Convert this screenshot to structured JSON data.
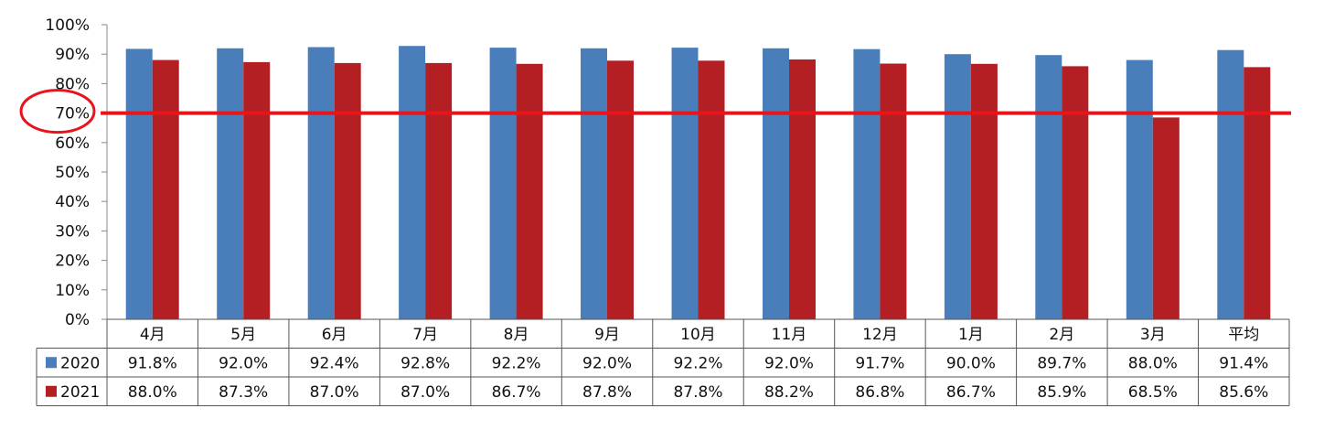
{
  "chart_data": {
    "type": "bar",
    "categories": [
      "4月",
      "5月",
      "6月",
      "7月",
      "8月",
      "9月",
      "10月",
      "11月",
      "12月",
      "1月",
      "2月",
      "3月",
      "平均"
    ],
    "series": [
      {
        "name": "2020",
        "color": "#4a7ebb",
        "values": [
          91.8,
          92.0,
          92.4,
          92.8,
          92.2,
          92.0,
          92.2,
          92.0,
          91.7,
          90.0,
          89.7,
          88.0,
          91.4
        ],
        "labels": [
          "91.8%",
          "92.0%",
          "92.4%",
          "92.8%",
          "92.2%",
          "92.0%",
          "92.2%",
          "92.0%",
          "91.7%",
          "90.0%",
          "89.7%",
          "88.0%",
          "91.4%"
        ]
      },
      {
        "name": "2021",
        "color": "#b41f24",
        "values": [
          88.0,
          87.3,
          87.0,
          87.0,
          86.7,
          87.8,
          87.8,
          88.2,
          86.8,
          86.7,
          85.9,
          68.5,
          85.6
        ],
        "labels": [
          "88.0%",
          "87.3%",
          "87.0%",
          "87.0%",
          "86.7%",
          "87.8%",
          "87.8%",
          "88.2%",
          "86.8%",
          "86.7%",
          "85.9%",
          "68.5%",
          "85.6%"
        ]
      }
    ],
    "ylim": [
      0,
      100
    ],
    "yticks": [
      "0%",
      "10%",
      "20%",
      "30%",
      "40%",
      "50%",
      "60%",
      "70%",
      "80%",
      "90%",
      "100%"
    ],
    "grid": false,
    "legend": "data-table",
    "reference_line": {
      "value": 70,
      "color": "#e8141b"
    },
    "highlight_circle": {
      "target_tick": "70%",
      "color": "#e8141b"
    }
  }
}
